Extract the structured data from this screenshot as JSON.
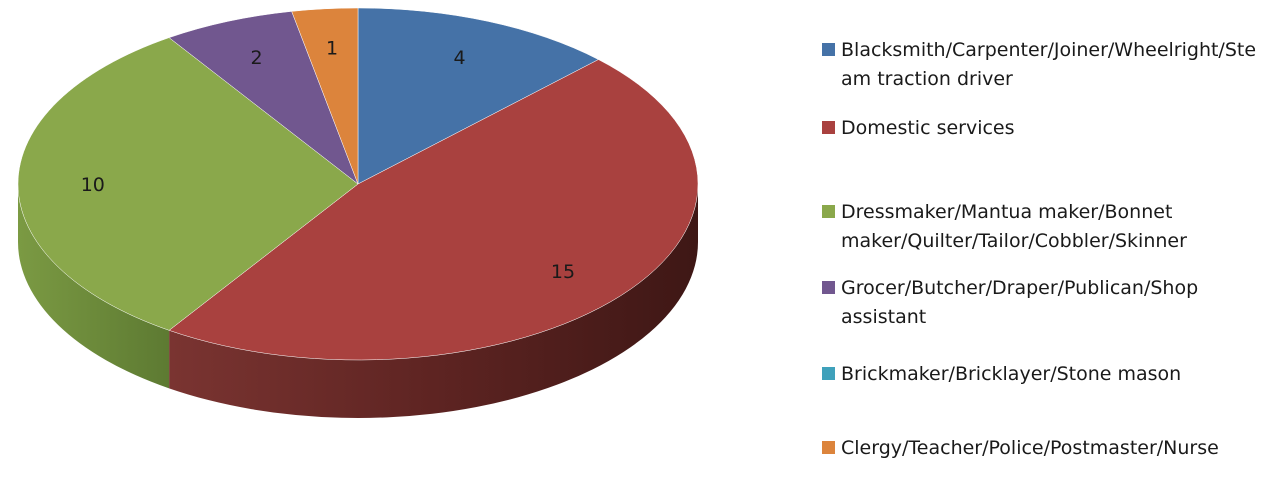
{
  "chart_data": {
    "type": "pie",
    "style": "3d",
    "title": "",
    "slices": [
      {
        "label": "Blacksmith/Carpenter/Joiner/Wheelright/Steam traction driver",
        "value": 4,
        "color": "#4572A7"
      },
      {
        "label": "Domestic services",
        "value": 15,
        "color": "#A9413F"
      },
      {
        "label": "Dressmaker/Mantua maker/Bonnet maker/Quilter/Tailor/Cobbler/Skinner",
        "value": 10,
        "color": "#8AA84B"
      },
      {
        "label": "Grocer/Butcher/Draper/Publican/Shop assistant",
        "value": 2,
        "color": "#71578F"
      },
      {
        "label": "Brickmaker/Bricklayer/Stone mason",
        "value": 0,
        "color": "#3FA1BB"
      },
      {
        "label": "Clergy/Teacher/Police/Postmaster/Nurse",
        "value": 1,
        "color": "#DC843C"
      }
    ],
    "legend_position": "right"
  }
}
